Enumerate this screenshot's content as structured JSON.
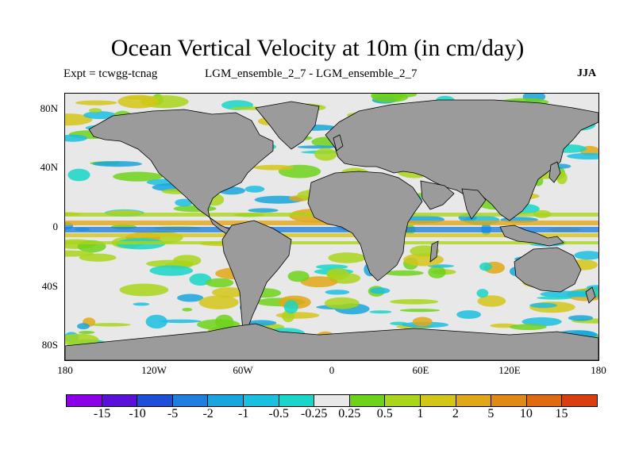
{
  "title": "Ocean Vertical Velocity at 10m (in cm/day)",
  "subtitle_left": "Expt = tcwgg-tcnag",
  "subtitle_center": "LGM_ensemble_2_7 - LGM_ensemble_2_7",
  "subtitle_right": "JJA",
  "map": {
    "lat_range": [
      -90,
      90
    ],
    "lon_range": [
      -180,
      180
    ],
    "lat_ticks": [
      {
        "value": 80,
        "label": "80N"
      },
      {
        "value": 40,
        "label": "40N"
      },
      {
        "value": 0,
        "label": "0"
      },
      {
        "value": -40,
        "label": "40S"
      },
      {
        "value": -80,
        "label": "80S"
      }
    ],
    "lon_ticks": [
      {
        "value": -180,
        "label": "180"
      },
      {
        "value": -120,
        "label": "120W"
      },
      {
        "value": -60,
        "label": "60W"
      },
      {
        "value": 0,
        "label": "0"
      },
      {
        "value": 60,
        "label": "60E"
      },
      {
        "value": 120,
        "label": "120E"
      },
      {
        "value": 180,
        "label": "180"
      }
    ],
    "land_color": "#9b9b9b",
    "ocean_color": "#e8e8e8"
  },
  "colorbar": {
    "colors": [
      "#8b00e8",
      "#5a10d8",
      "#1e4fd6",
      "#1f7fe0",
      "#19a6dc",
      "#1bbfe0",
      "#19d6c8",
      "#e8e8e8",
      "#6fd21a",
      "#a9d51a",
      "#d4c619",
      "#e0a818",
      "#e08a16",
      "#e06a12",
      "#d83e0e"
    ],
    "labels": [
      "-15",
      "-10",
      "-5",
      "-2",
      "-1",
      "-0.5",
      "-0.25",
      "0.25",
      "0.5",
      "1",
      "2",
      "5",
      "10",
      "15"
    ]
  }
}
